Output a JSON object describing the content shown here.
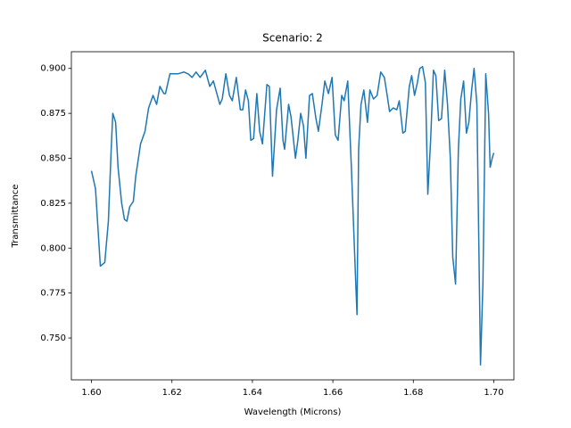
{
  "chart_data": {
    "type": "line",
    "title": "Scenario: 2",
    "x_label": "Wavelength (Microns)",
    "y_label": "Transmittance",
    "x": [
      1.6,
      1.601,
      1.6022,
      1.6033,
      1.6042,
      1.6049,
      1.6053,
      1.606,
      1.6066,
      1.6075,
      1.6082,
      1.6088,
      1.6095,
      1.6104,
      1.611,
      1.6122,
      1.6133,
      1.6142,
      1.6153,
      1.6162,
      1.617,
      1.618,
      1.6184,
      1.6195,
      1.6215,
      1.623,
      1.624,
      1.625,
      1.626,
      1.627,
      1.6283,
      1.6294,
      1.6303,
      1.6319,
      1.6325,
      1.6334,
      1.6343,
      1.635,
      1.636,
      1.637,
      1.6376,
      1.6383,
      1.639,
      1.6396,
      1.6403,
      1.6411,
      1.6418,
      1.6425,
      1.6436,
      1.6442,
      1.645,
      1.646,
      1.6469,
      1.6476,
      1.648,
      1.649,
      1.6496,
      1.6507,
      1.6513,
      1.652,
      1.6527,
      1.6533,
      1.6542,
      1.6549,
      1.6558,
      1.6564,
      1.6573,
      1.658,
      1.6589,
      1.6598,
      1.6606,
      1.6613,
      1.6622,
      1.6628,
      1.6637,
      1.6646,
      1.6657,
      1.666,
      1.6664,
      1.667,
      1.6677,
      1.6686,
      1.6692,
      1.6701,
      1.671,
      1.6719,
      1.6728,
      1.6735,
      1.6741,
      1.675,
      1.6759,
      1.6765,
      1.6774,
      1.678,
      1.679,
      1.6796,
      1.6803,
      1.681,
      1.6816,
      1.6823,
      1.683,
      1.6836,
      1.6843,
      1.685,
      1.6856,
      1.6863,
      1.687,
      1.6878,
      1.6885,
      1.6892,
      1.6898,
      1.6905,
      1.6912,
      1.6918,
      1.6925,
      1.6932,
      1.6938,
      1.6945,
      1.6951,
      1.6958,
      1.6967,
      1.6973,
      1.698,
      1.6987,
      1.6991,
      1.6996,
      1.7
    ],
    "series": [
      {
        "color": "#1f77b4",
        "values": [
          0.843,
          0.833,
          0.79,
          0.792,
          0.815,
          0.855,
          0.875,
          0.87,
          0.845,
          0.825,
          0.816,
          0.815,
          0.823,
          0.826,
          0.84,
          0.858,
          0.865,
          0.878,
          0.885,
          0.88,
          0.89,
          0.886,
          0.886,
          0.897,
          0.897,
          0.898,
          0.897,
          0.895,
          0.898,
          0.895,
          0.899,
          0.89,
          0.893,
          0.88,
          0.883,
          0.897,
          0.885,
          0.882,
          0.895,
          0.877,
          0.877,
          0.888,
          0.882,
          0.86,
          0.861,
          0.886,
          0.865,
          0.858,
          0.891,
          0.89,
          0.84,
          0.877,
          0.889,
          0.86,
          0.855,
          0.88,
          0.873,
          0.85,
          0.86,
          0.875,
          0.868,
          0.85,
          0.885,
          0.886,
          0.872,
          0.865,
          0.88,
          0.893,
          0.886,
          0.895,
          0.863,
          0.86,
          0.885,
          0.882,
          0.893,
          0.845,
          0.78,
          0.763,
          0.855,
          0.88,
          0.888,
          0.87,
          0.888,
          0.883,
          0.885,
          0.898,
          0.895,
          0.885,
          0.876,
          0.878,
          0.877,
          0.882,
          0.864,
          0.865,
          0.89,
          0.896,
          0.885,
          0.892,
          0.9,
          0.901,
          0.892,
          0.83,
          0.86,
          0.899,
          0.896,
          0.871,
          0.872,
          0.899,
          0.88,
          0.85,
          0.795,
          0.78,
          0.855,
          0.883,
          0.893,
          0.864,
          0.87,
          0.888,
          0.9,
          0.88,
          0.735,
          0.78,
          0.897,
          0.875,
          0.845,
          0.85,
          0.853
        ]
      }
    ],
    "xlim": [
      1.595,
      1.705
    ],
    "ylim": [
      0.7267,
      0.9093
    ],
    "xticks": [
      {
        "value": 1.6,
        "label": "1.60"
      },
      {
        "value": 1.62,
        "label": "1.62"
      },
      {
        "value": 1.64,
        "label": "1.64"
      },
      {
        "value": 1.66,
        "label": "1.66"
      },
      {
        "value": 1.68,
        "label": "1.68"
      },
      {
        "value": 1.7,
        "label": "1.70"
      }
    ],
    "yticks": [
      {
        "value": 0.75,
        "label": "0.750"
      },
      {
        "value": 0.775,
        "label": "0.775"
      },
      {
        "value": 0.8,
        "label": "0.800"
      },
      {
        "value": 0.825,
        "label": "0.825"
      },
      {
        "value": 0.85,
        "label": "0.850"
      },
      {
        "value": 0.875,
        "label": "0.875"
      },
      {
        "value": 0.9,
        "label": "0.900"
      }
    ]
  }
}
